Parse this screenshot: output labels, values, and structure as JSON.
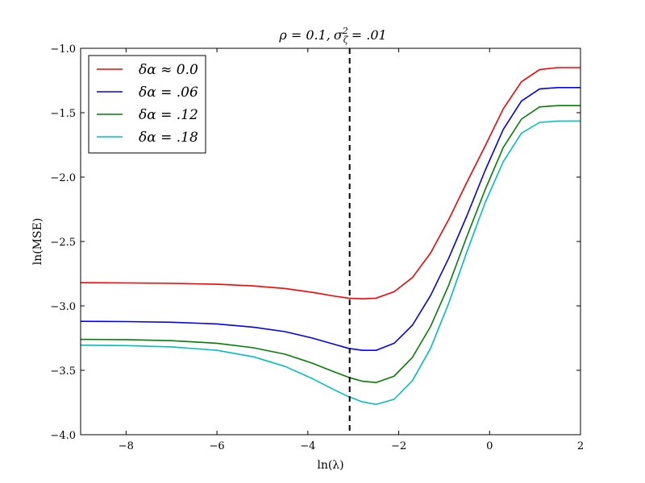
{
  "chart_data": {
    "type": "line",
    "title": "ρ = 0.1, σ²ζ = .01",
    "title_parts": {
      "rho": "ρ = 0.1,",
      "sigma": "σ",
      "sup": "2",
      "sub": "ζ",
      "eq": "= .01"
    },
    "xlabel": "ln(λ)",
    "ylabel": "ln(MSE)",
    "xlim": [
      -9,
      2
    ],
    "ylim": [
      -4.0,
      -1.0
    ],
    "xticks": [
      -8,
      -6,
      -4,
      -2,
      0,
      2
    ],
    "xtick_labels": [
      "−8",
      "−6",
      "−4",
      "−2",
      "0",
      "2"
    ],
    "yticks": [
      -1.0,
      -1.5,
      -2.0,
      -2.5,
      -3.0,
      -3.5,
      -4.0
    ],
    "ytick_labels": [
      "−1.0",
      "−1.5",
      "−2.0",
      "−2.5",
      "−3.0",
      "−3.5",
      "−4.0"
    ],
    "vline_x": -3.08,
    "legend_position": "top-left",
    "x": [
      -9.0,
      -8.0,
      -7.0,
      -6.0,
      -5.2,
      -4.5,
      -3.9,
      -3.4,
      -3.1,
      -2.8,
      -2.5,
      -2.1,
      -1.7,
      -1.3,
      -0.9,
      -0.5,
      -0.1,
      0.3,
      0.7,
      1.1,
      1.5,
      2.0
    ],
    "series": [
      {
        "name": "δα ≈ 0.0",
        "color": "#ff0000",
        "values": [
          -2.82,
          -2.822,
          -2.825,
          -2.832,
          -2.845,
          -2.865,
          -2.895,
          -2.925,
          -2.94,
          -2.945,
          -2.94,
          -2.89,
          -2.78,
          -2.59,
          -2.33,
          -2.04,
          -1.76,
          -1.47,
          -1.26,
          -1.165,
          -1.15,
          -1.15
        ]
      },
      {
        "name": "δα = .06",
        "color": "#0000ff",
        "values": [
          -3.12,
          -3.122,
          -3.127,
          -3.14,
          -3.165,
          -3.2,
          -3.25,
          -3.3,
          -3.33,
          -3.345,
          -3.345,
          -3.29,
          -3.15,
          -2.92,
          -2.63,
          -2.3,
          -1.95,
          -1.63,
          -1.41,
          -1.315,
          -1.305,
          -1.305
        ]
      },
      {
        "name": "δα = .12",
        "color": "#008000",
        "values": [
          -3.26,
          -3.262,
          -3.27,
          -3.29,
          -3.325,
          -3.375,
          -3.445,
          -3.515,
          -3.555,
          -3.585,
          -3.595,
          -3.545,
          -3.4,
          -3.16,
          -2.84,
          -2.46,
          -2.1,
          -1.77,
          -1.55,
          -1.455,
          -1.445,
          -1.445
        ]
      },
      {
        "name": "δα = .18",
        "color": "#00bfbf",
        "values": [
          -3.305,
          -3.308,
          -3.318,
          -3.345,
          -3.395,
          -3.47,
          -3.565,
          -3.655,
          -3.705,
          -3.745,
          -3.765,
          -3.725,
          -3.58,
          -3.33,
          -2.98,
          -2.58,
          -2.2,
          -1.88,
          -1.66,
          -1.575,
          -1.565,
          -1.565
        ]
      }
    ]
  }
}
